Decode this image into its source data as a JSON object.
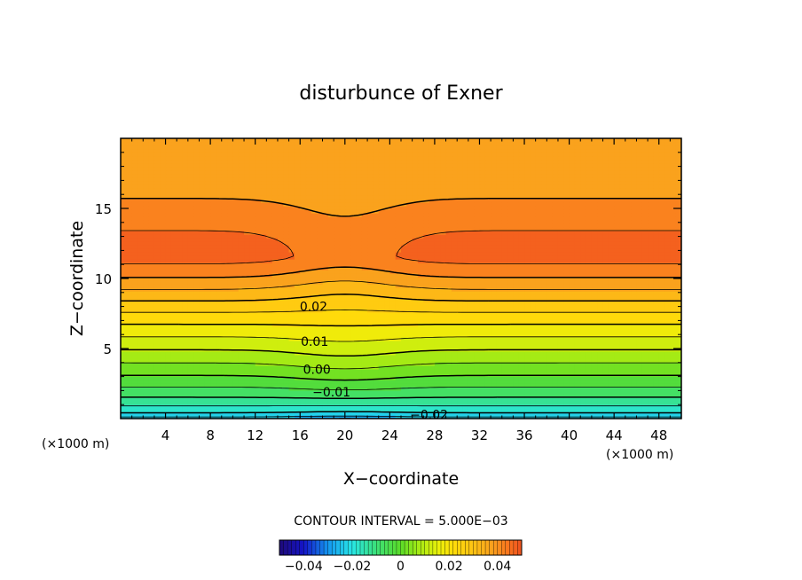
{
  "chart_data": {
    "type": "heatmap",
    "subtype": "filled-contour",
    "title": "disturbunce of Exner",
    "xlabel": "X−coordinate",
    "ylabel": "Z−coordinate",
    "x_unit_left": "(×1000 m)",
    "x_unit_right": "(×1000 m)",
    "xlim": [
      0,
      50
    ],
    "ylim": [
      0,
      20
    ],
    "x_ticks": [
      4,
      8,
      12,
      16,
      20,
      24,
      28,
      32,
      36,
      40,
      44,
      48
    ],
    "x_tick_labels": [
      "4",
      "8",
      "12",
      "16",
      "20",
      "24",
      "28",
      "32",
      "36",
      "40",
      "44",
      "48"
    ],
    "y_ticks": [
      5,
      10,
      15
    ],
    "y_tick_labels": [
      "5",
      "10",
      "15"
    ],
    "contour_interval_text": "CONTOUR INTERVAL = 5.000E−03",
    "contour_interval": 0.005,
    "contour_labels": [
      {
        "text": "0.02",
        "x": 17.2,
        "z": 8.0
      },
      {
        "text": "0.01",
        "x": 17.3,
        "z": 5.5
      },
      {
        "text": "0.00",
        "x": 17.5,
        "z": 3.5
      },
      {
        "text": "−0.01",
        "x": 18.8,
        "z": 1.9
      },
      {
        "text": "−0.02",
        "x": 27.5,
        "z": 0.3
      }
    ],
    "field_summary": {
      "maxima": [
        {
          "x": 7,
          "z": 11.5,
          "value": 0.045
        },
        {
          "x": 36,
          "z": 11.3,
          "value": 0.045
        }
      ],
      "minimum": {
        "x": 20,
        "z": 0,
        "value": -0.03
      },
      "saddle": {
        "x": 20,
        "z": 11.5,
        "value": 0.03
      }
    },
    "colorbar": {
      "ticks": [
        -0.04,
        -0.02,
        0,
        0.02,
        0.04
      ],
      "tick_labels": [
        "−0.04",
        "−0.02",
        "0",
        "0.02",
        "0.04"
      ],
      "range": [
        -0.05,
        0.05
      ]
    }
  }
}
